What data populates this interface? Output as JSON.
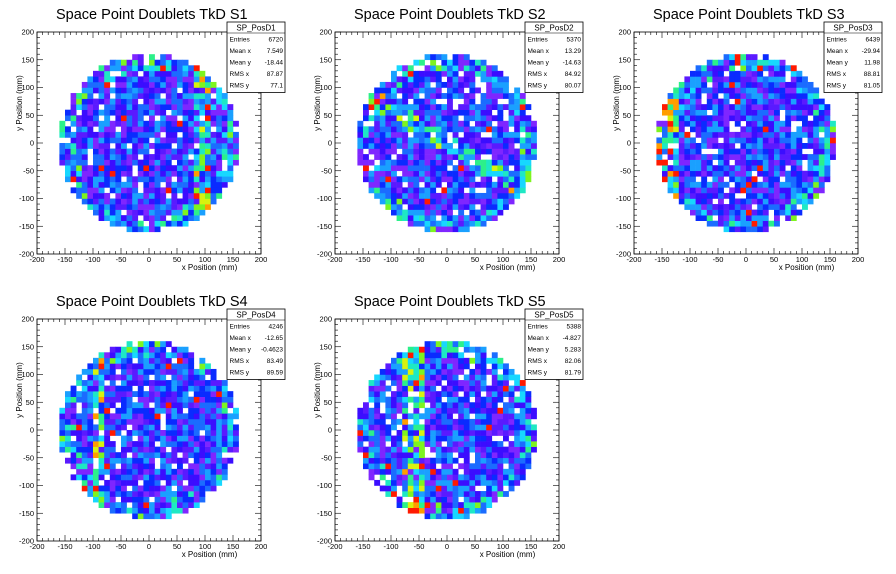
{
  "chart_data": [
    {
      "type": "heatmap",
      "title": "Space Point Doublets TkD S1",
      "xlabel": "x Position (mm)",
      "ylabel": "y Position (mm)",
      "xlim": [
        -200,
        200
      ],
      "ylim": [
        -200,
        200
      ],
      "xticks": [
        "-200",
        "-150",
        "-100",
        "-50",
        "0",
        "50",
        "100",
        "150",
        "200"
      ],
      "yticks": [
        "-200",
        "-150",
        "-100",
        "-50",
        "0",
        "50",
        "100",
        "150",
        "200"
      ],
      "region_radius": 160,
      "bin_size": 10,
      "colors": [
        "#3b0dff",
        "#5a1aff",
        "#7f26ff",
        "#0a2bff",
        "#1b6cff",
        "#1aa0ff",
        "#17d7ff",
        "#1ee8c4",
        "#2cf08a",
        "#7ef41f",
        "#d8f20f",
        "#ff9d00",
        "#ff1a00"
      ],
      "hot_bands": [
        {
          "axis": "x",
          "value": 95,
          "width": 12
        }
      ],
      "stats": {
        "name": "SP_PosD1",
        "rows": [
          [
            "Entries",
            "6720"
          ],
          [
            "Mean x",
            "7.549"
          ],
          [
            "Mean y",
            "-18.44"
          ],
          [
            "RMS x",
            "87.87"
          ],
          [
            "RMS y",
            "77.1"
          ]
        ]
      }
    },
    {
      "type": "heatmap",
      "title": "Space Point Doublets TkD S2",
      "xlabel": "x Position (mm)",
      "ylabel": "y Position (mm)",
      "xlim": [
        -200,
        200
      ],
      "ylim": [
        -200,
        200
      ],
      "xticks": [
        "-200",
        "-150",
        "-100",
        "-50",
        "0",
        "50",
        "100",
        "150",
        "200"
      ],
      "yticks": [
        "-200",
        "-150",
        "-100",
        "-50",
        "0",
        "50",
        "100",
        "150",
        "200"
      ],
      "region_radius": 160,
      "bin_size": 10,
      "colors": [
        "#3b0dff",
        "#5a1aff",
        "#7f26ff",
        "#0a2bff",
        "#1b6cff",
        "#1aa0ff",
        "#17d7ff",
        "#1ee8c4",
        "#2cf08a",
        "#7ef41f",
        "#d8f20f",
        "#ff9d00",
        "#ff1a00"
      ],
      "hot_bands": [
        {
          "axis": "diag",
          "value": 0,
          "width": 14
        }
      ],
      "stats": {
        "name": "SP_PosD2",
        "rows": [
          [
            "Entries",
            "5370"
          ],
          [
            "Mean x",
            "13.29"
          ],
          [
            "Mean y",
            "-14.63"
          ],
          [
            "RMS x",
            "84.92"
          ],
          [
            "RMS y",
            "80.07"
          ]
        ]
      }
    },
    {
      "type": "heatmap",
      "title": "Space Point Doublets TkD S3",
      "xlabel": "x Position (mm)",
      "ylabel": "y Position (mm)",
      "xlim": [
        -200,
        200
      ],
      "ylim": [
        -200,
        200
      ],
      "xticks": [
        "-200",
        "-150",
        "-100",
        "-50",
        "0",
        "50",
        "100",
        "150",
        "200"
      ],
      "yticks": [
        "-200",
        "-150",
        "-100",
        "-50",
        "0",
        "50",
        "100",
        "150",
        "200"
      ],
      "region_radius": 160,
      "bin_size": 10,
      "colors": [
        "#3b0dff",
        "#5a1aff",
        "#7f26ff",
        "#0a2bff",
        "#1b6cff",
        "#1aa0ff",
        "#17d7ff",
        "#1ee8c4",
        "#2cf08a",
        "#7ef41f",
        "#d8f20f",
        "#ff9d00",
        "#ff1a00"
      ],
      "hot_bands": [
        {
          "axis": "x",
          "value": -140,
          "width": 22
        }
      ],
      "stats": {
        "name": "SP_PosD3",
        "rows": [
          [
            "Entries",
            "6439"
          ],
          [
            "Mean x",
            "-29.94"
          ],
          [
            "Mean y",
            "11.98"
          ],
          [
            "RMS x",
            "88.81"
          ],
          [
            "RMS y",
            "81.05"
          ]
        ]
      }
    },
    {
      "type": "heatmap",
      "title": "Space Point Doublets TkD S4",
      "xlabel": "x Position (mm)",
      "ylabel": "y Position (mm)",
      "xlim": [
        -200,
        200
      ],
      "ylim": [
        -200,
        200
      ],
      "xticks": [
        "-200",
        "-150",
        "-100",
        "-50",
        "0",
        "50",
        "100",
        "150",
        "200"
      ],
      "yticks": [
        "-200",
        "-150",
        "-100",
        "-50",
        "0",
        "50",
        "100",
        "150",
        "200"
      ],
      "region_radius": 160,
      "bin_size": 10,
      "colors": [
        "#3b0dff",
        "#5a1aff",
        "#7f26ff",
        "#0a2bff",
        "#1b6cff",
        "#1aa0ff",
        "#17d7ff",
        "#1ee8c4",
        "#2cf08a",
        "#7ef41f",
        "#d8f20f",
        "#ff9d00",
        "#ff1a00"
      ],
      "hot_bands": [
        {
          "axis": "x",
          "value": -90,
          "width": 14
        }
      ],
      "stats": {
        "name": "SP_PosD4",
        "rows": [
          [
            "Entries",
            "4246"
          ],
          [
            "Mean x",
            "-12.65"
          ],
          [
            "Mean y",
            "-0.4623"
          ],
          [
            "RMS x",
            "83.49"
          ],
          [
            "RMS y",
            "89.59"
          ]
        ]
      }
    },
    {
      "type": "heatmap",
      "title": "Space Point Doublets TkD S5",
      "xlabel": "x Position (mm)",
      "ylabel": "y Position (mm)",
      "xlim": [
        -200,
        200
      ],
      "ylim": [
        -200,
        200
      ],
      "xticks": [
        "-200",
        "-150",
        "-100",
        "-50",
        "0",
        "50",
        "100",
        "150",
        "200"
      ],
      "yticks": [
        "-200",
        "-150",
        "-100",
        "-50",
        "0",
        "50",
        "100",
        "150",
        "200"
      ],
      "region_radius": 160,
      "bin_size": 10,
      "colors": [
        "#3b0dff",
        "#5a1aff",
        "#7f26ff",
        "#0a2bff",
        "#1b6cff",
        "#1aa0ff",
        "#17d7ff",
        "#1ee8c4",
        "#2cf08a",
        "#7ef41f",
        "#d8f20f",
        "#ff9d00",
        "#ff1a00"
      ],
      "hot_bands": [
        {
          "axis": "x",
          "value": -60,
          "width": 20
        }
      ],
      "stats": {
        "name": "SP_PosD5",
        "rows": [
          [
            "Entries",
            "5388"
          ],
          [
            "Mean x",
            "-4.827"
          ],
          [
            "Mean y",
            "5.283"
          ],
          [
            "RMS x",
            "82.06"
          ],
          [
            "RMS y",
            "81.79"
          ]
        ]
      }
    }
  ]
}
